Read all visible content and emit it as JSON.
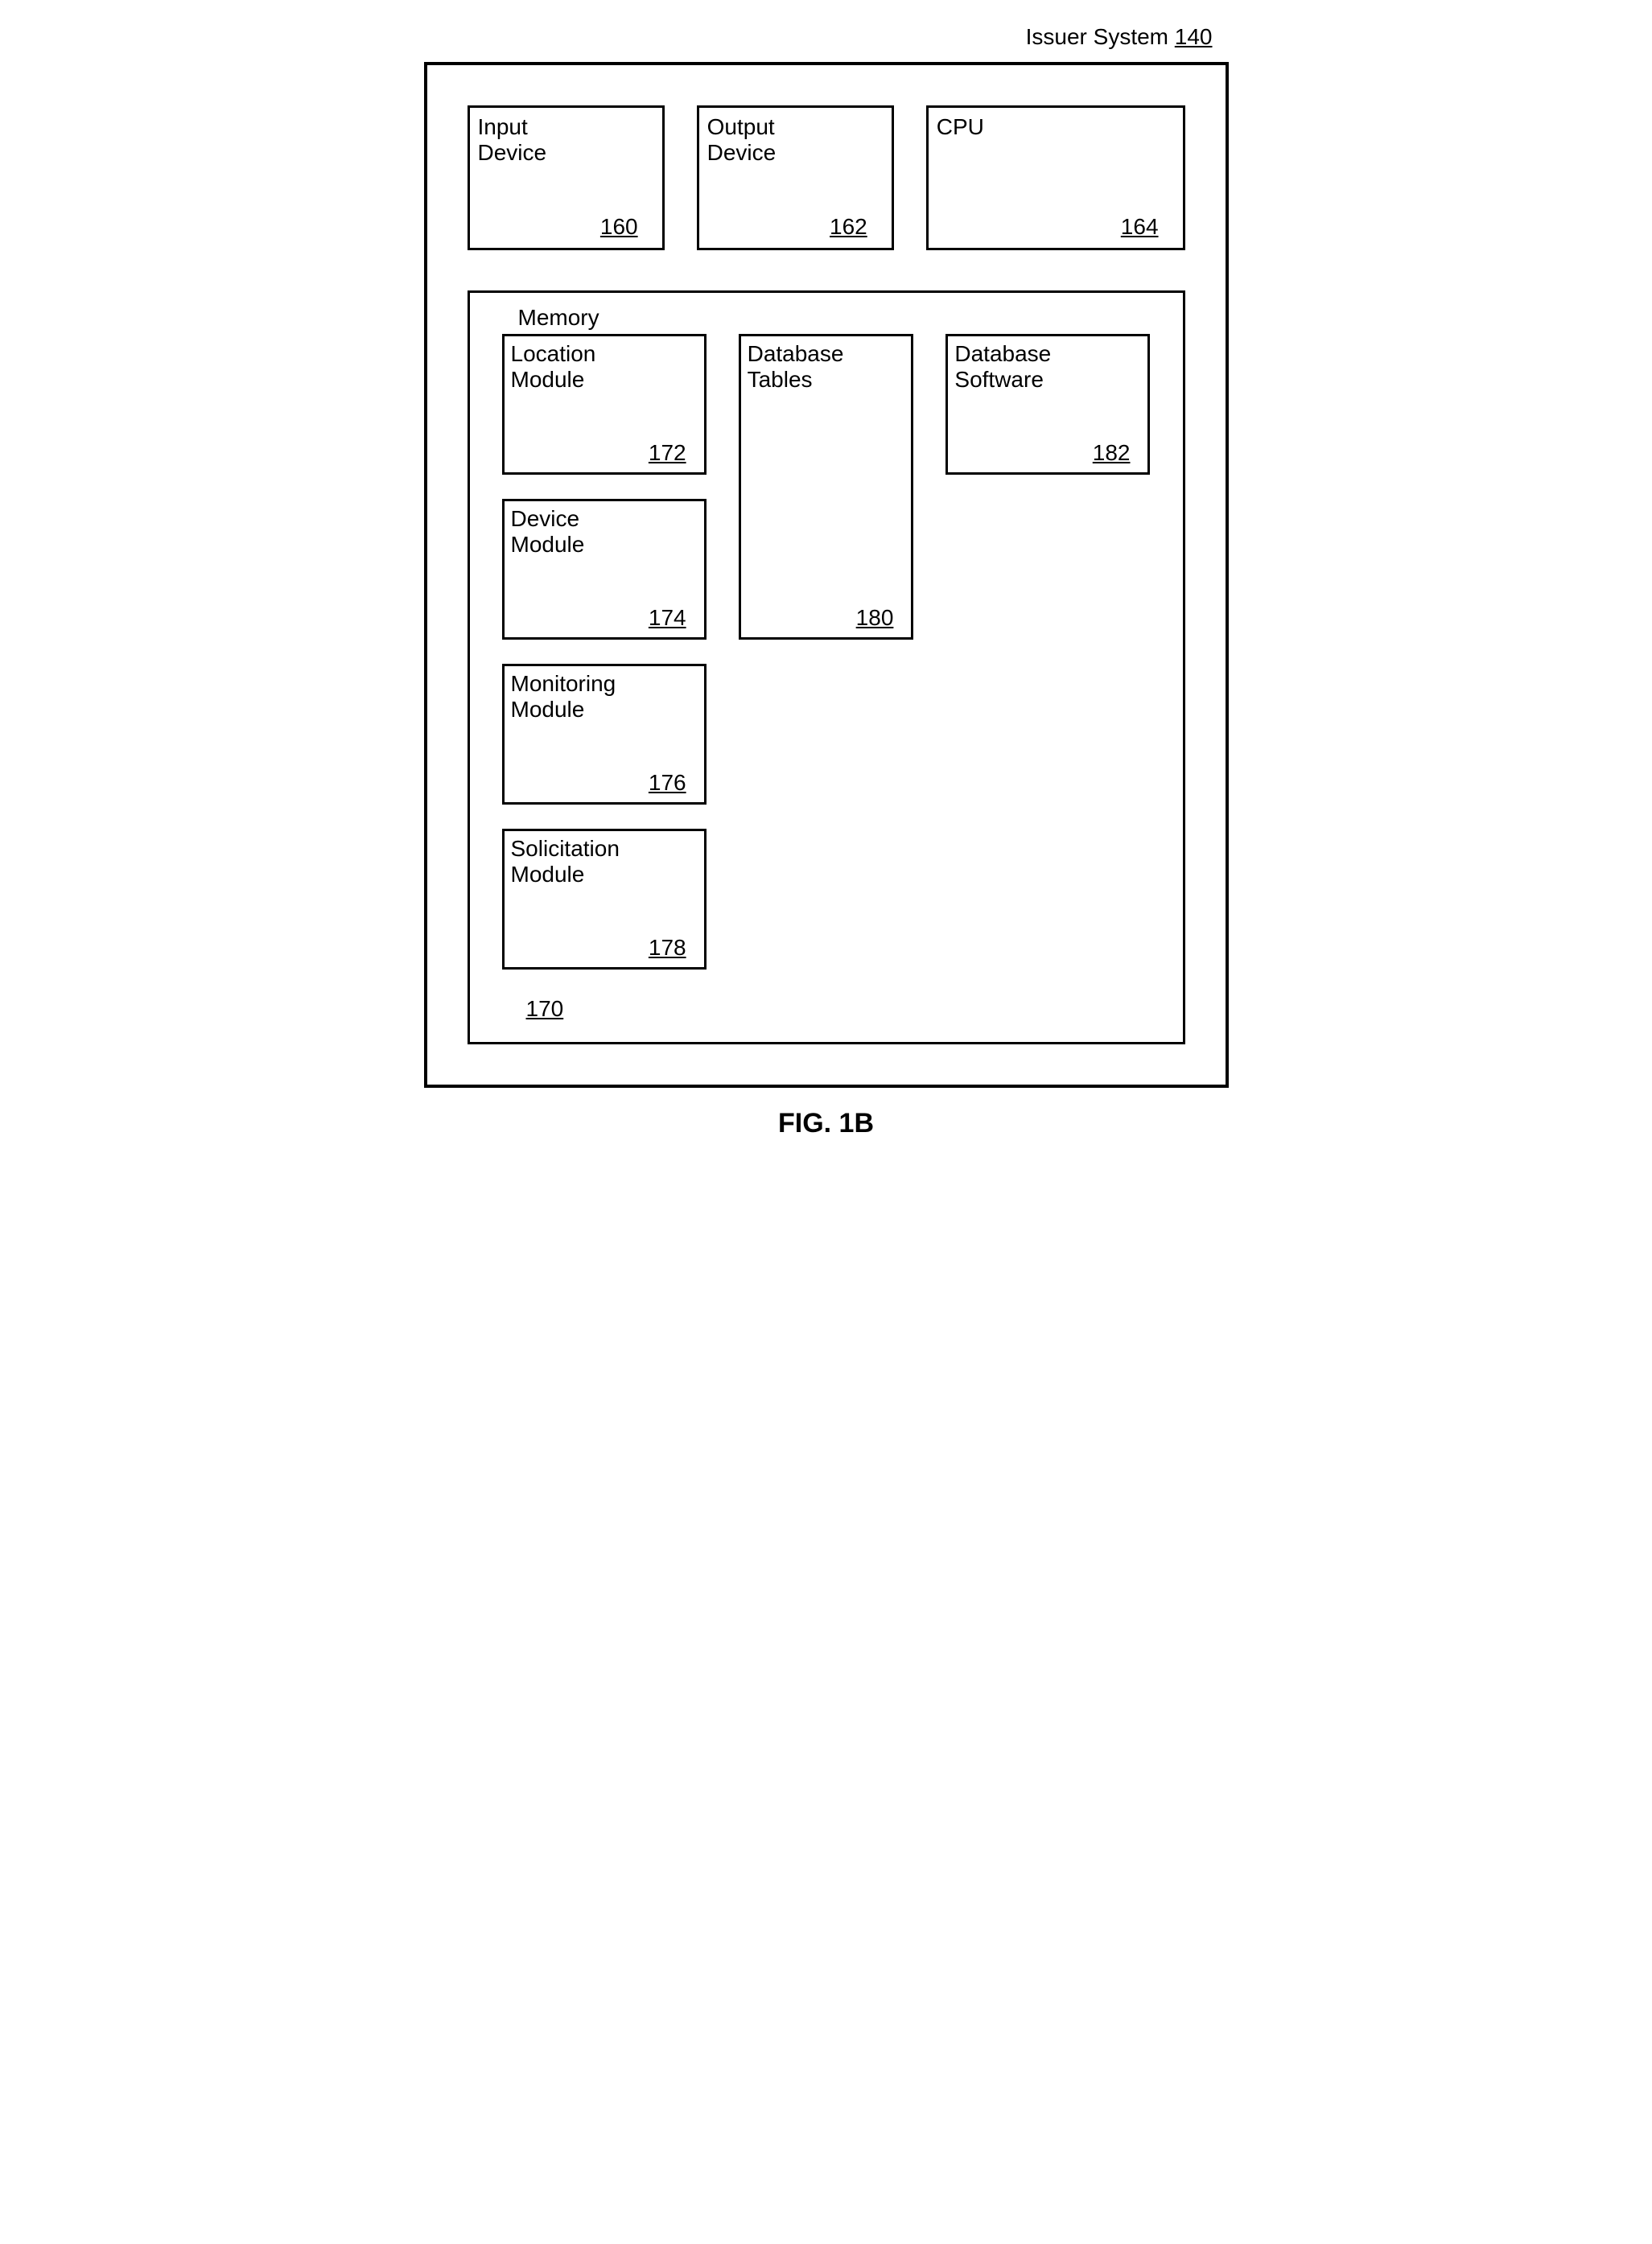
{
  "diagram": {
    "type": "block-diagram",
    "border_color": "#000000",
    "background_color": "#ffffff",
    "text_color": "#000000",
    "font_family": "Arial",
    "label_fontsize": 28,
    "caption_fontsize": 34,
    "border_width_outer": 4,
    "border_width_box": 3,
    "top_label": {
      "text": "Issuer System",
      "ref": "140"
    },
    "top_row": {
      "input": {
        "label": "Input\nDevice",
        "ref": "160"
      },
      "output": {
        "label": "Output\nDevice",
        "ref": "162"
      },
      "cpu": {
        "label": "CPU",
        "ref": "164"
      }
    },
    "memory": {
      "title": "Memory",
      "ref": "170",
      "left_column": [
        {
          "label": "Location\nModule",
          "ref": "172"
        },
        {
          "label": "Device\nModule",
          "ref": "174"
        },
        {
          "label": "Monitoring\nModule",
          "ref": "176"
        },
        {
          "label": "Solicitation\nModule",
          "ref": "178"
        }
      ],
      "mid_column": [
        {
          "label": "Database\nTables",
          "ref": "180"
        }
      ],
      "right_column": [
        {
          "label": "Database\nSoftware",
          "ref": "182"
        }
      ]
    },
    "caption": "FIG. 1B"
  }
}
